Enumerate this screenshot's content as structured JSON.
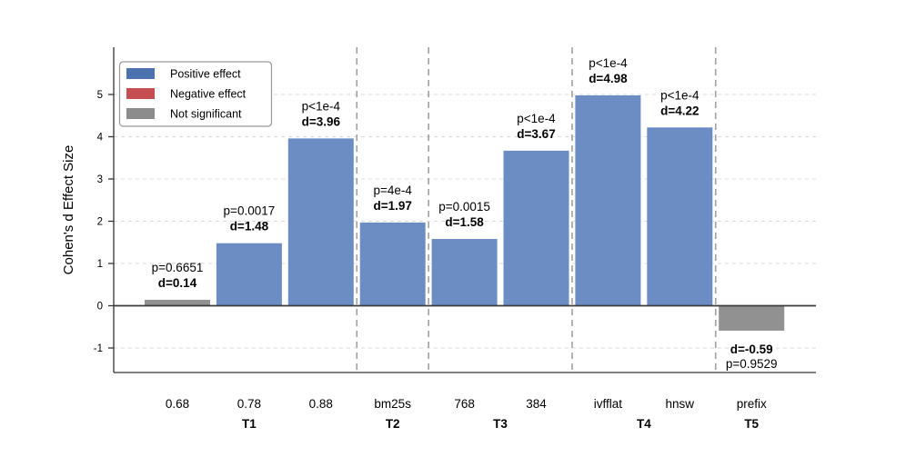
{
  "chart_data": {
    "type": "bar",
    "title": "",
    "xlabel": "",
    "ylabel": "Cohen's d Effect Size",
    "ylim": [
      -1.6,
      6.15
    ],
    "yticks": [
      -1,
      0,
      1,
      2,
      3,
      4,
      5
    ],
    "grid": "horizontal-dashed",
    "group_separators": "vertical-dashed-between-groups",
    "legend_position": "upper-left",
    "legend": {
      "items": [
        {
          "label": "Positive effect",
          "color": "#4c72b0"
        },
        {
          "label": "Negative effect",
          "color": "#c44e52"
        },
        {
          "label": "Not significant",
          "color": "#8c8c8c"
        }
      ]
    },
    "groups": [
      {
        "label": "T1",
        "categories": [
          "0.68",
          "0.78",
          "0.88"
        ]
      },
      {
        "label": "T2",
        "categories": [
          "bm25s"
        ]
      },
      {
        "label": "T3",
        "categories": [
          "768",
          "384"
        ]
      },
      {
        "label": "T4",
        "categories": [
          "ivfflat",
          "hnsw"
        ]
      },
      {
        "label": "T5",
        "categories": [
          "prefix"
        ]
      }
    ],
    "bars": [
      {
        "category": "0.68",
        "group": "T1",
        "d": 0.14,
        "p_label": "p=0.6651",
        "d_label": "d=0.14",
        "effect": "not-significant"
      },
      {
        "category": "0.78",
        "group": "T1",
        "d": 1.48,
        "p_label": "p=0.0017",
        "d_label": "d=1.48",
        "effect": "positive"
      },
      {
        "category": "0.88",
        "group": "T1",
        "d": 3.96,
        "p_label": "p<1e-4",
        "d_label": "d=3.96",
        "effect": "positive"
      },
      {
        "category": "bm25s",
        "group": "T2",
        "d": 1.97,
        "p_label": "p=4e-4",
        "d_label": "d=1.97",
        "effect": "positive"
      },
      {
        "category": "768",
        "group": "T3",
        "d": 1.58,
        "p_label": "p=0.0015",
        "d_label": "d=1.58",
        "effect": "positive"
      },
      {
        "category": "384",
        "group": "T3",
        "d": 3.67,
        "p_label": "p<1e-4",
        "d_label": "d=3.67",
        "effect": "positive"
      },
      {
        "category": "ivfflat",
        "group": "T4",
        "d": 4.98,
        "p_label": "p<1e-4",
        "d_label": "d=4.98",
        "effect": "positive"
      },
      {
        "category": "hnsw",
        "group": "T4",
        "d": 4.22,
        "p_label": "p<1e-4",
        "d_label": "d=4.22",
        "effect": "positive"
      },
      {
        "category": "prefix",
        "group": "T5",
        "d": -0.59,
        "p_label": "p=0.9529",
        "d_label": "d=-0.59",
        "effect": "not-significant"
      }
    ],
    "colors": {
      "positive_bar": "#6c8dc4",
      "negative_bar": "#c44e52",
      "not_significant_bar": "#919191",
      "annotation_significant": "#128012",
      "annotation_not_significant": "#000000",
      "grid_line": "#d8d8d8",
      "separator_line": "#a0a0a0",
      "zero_line": "#3c3c3c",
      "spine": "#333333",
      "legend_border": "#999999",
      "legend_background": "#ffffff"
    }
  }
}
